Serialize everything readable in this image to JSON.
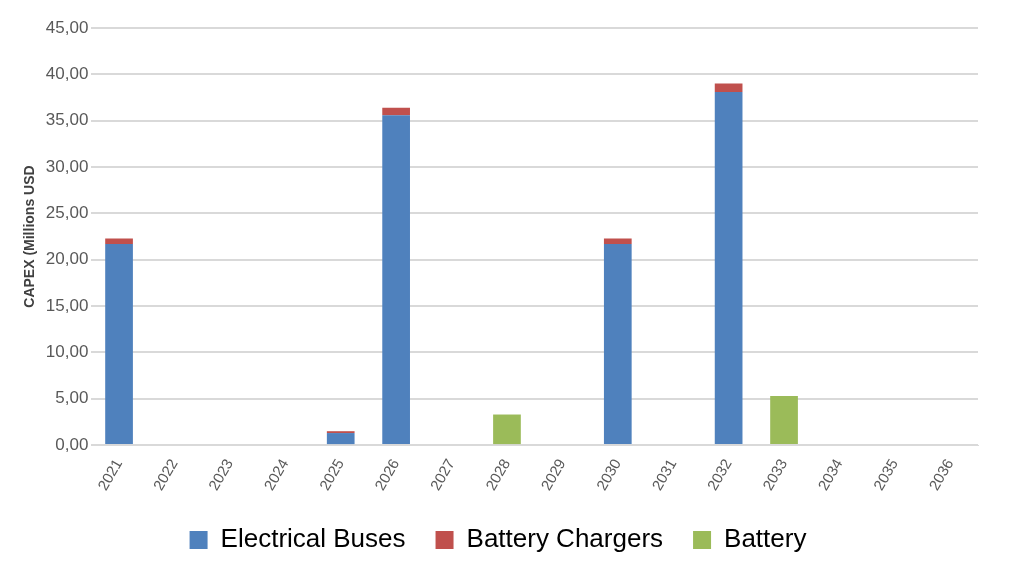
{
  "chart_data": {
    "type": "bar",
    "stacked": true,
    "ylabel": "CAPEX (Millions USD",
    "categories": [
      "2021",
      "2022",
      "2023",
      "2024",
      "2025",
      "2026",
      "2027",
      "2028",
      "2029",
      "2030",
      "2031",
      "2032",
      "2033",
      "2034",
      "2035",
      "2036"
    ],
    "series": [
      {
        "name": "Electrical Buses",
        "color": "#4f81bd",
        "values": [
          21.7,
          0,
          0,
          0,
          1.3,
          35.6,
          0,
          0,
          0,
          21.7,
          0,
          38.1,
          0,
          0,
          0,
          0
        ]
      },
      {
        "name": "Battery Chargers",
        "color": "#c0504d",
        "values": [
          0.6,
          0,
          0,
          0,
          0.2,
          0.8,
          0,
          0,
          0,
          0.6,
          0,
          0.9,
          0,
          0,
          0,
          0
        ]
      },
      {
        "name": "Battery",
        "color": "#9bbb59",
        "values": [
          0,
          0,
          0,
          0,
          0,
          0,
          0,
          3.3,
          0,
          0,
          0,
          0,
          5.3,
          0,
          0,
          0
        ]
      }
    ],
    "ylim": [
      0,
      45
    ],
    "yticks": [
      {
        "value": 0,
        "label": "0,00"
      },
      {
        "value": 5,
        "label": "5,00"
      },
      {
        "value": 10,
        "label": "10,00"
      },
      {
        "value": 15,
        "label": "15,00"
      },
      {
        "value": 20,
        "label": "20,00"
      },
      {
        "value": 25,
        "label": "25,00"
      },
      {
        "value": 30,
        "label": "30,00"
      },
      {
        "value": 35,
        "label": "35,00"
      },
      {
        "value": 40,
        "label": "40,00"
      },
      {
        "value": 45,
        "label": "45,00"
      }
    ],
    "grid": "y",
    "legend": "bottom"
  }
}
